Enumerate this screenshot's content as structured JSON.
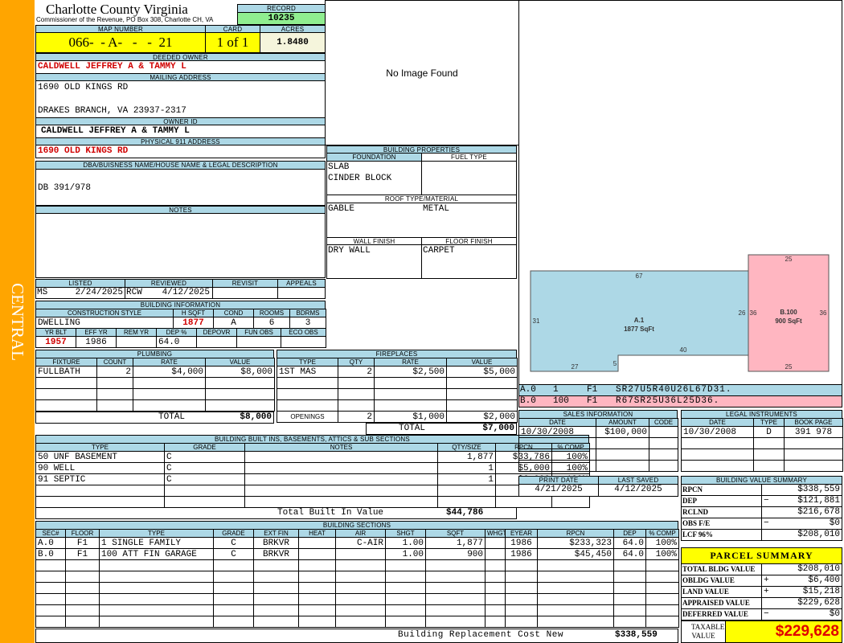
{
  "sidebar": {
    "label": "CENTRAL",
    "color": "#ffa500"
  },
  "header": {
    "county": "Charlotte County Virginia",
    "subtitle": "Commissioner of the Revenue, PO Box 308, Charlotte CH, VA",
    "record_label": "RECORD",
    "record": "10235"
  },
  "map": {
    "map_label": "MAP NUMBER",
    "map_number": "066-  - A-   -   -  21",
    "card_label": "CARD",
    "card": "1 of 1",
    "acres_label": "ACRES",
    "acres": "1.8480"
  },
  "owner": {
    "deeded_label": "DEEDED OWNER",
    "deeded": "CALDWELL JEFFREY A & TAMMY L",
    "mailing_label": "MAILING ADDRESS",
    "mailing_line1": "1690 OLD KINGS RD",
    "mailing_line2": "DRAKES BRANCH, VA 23937-2317",
    "owner_id_label": "OWNER ID",
    "owner_id": "CALDWELL JEFFREY A & TAMMY L",
    "physical_label": "PHYSICAL 911 ADDRESS",
    "physical": "1690 OLD KINGS RD"
  },
  "dba": {
    "label": "DBA/BUISNESS NAME/HOUSE NAME & LEGAL DESCRIPTION",
    "value": "DB 391/978"
  },
  "notes": {
    "label": "NOTES"
  },
  "listing": {
    "listed_label": "LISTED",
    "listed_by": "MS",
    "listed_date": "2/24/2025",
    "reviewed_label": "REVIEWED",
    "reviewed_by": "RCW",
    "reviewed_date": "4/12/2025",
    "revisit_label": "REVISIT",
    "appeals_label": "APPEALS"
  },
  "building_info": {
    "label": "BUILDING INFORMATION",
    "style_label": "CONSTRUCTION STYLE",
    "style": "DWELLING",
    "hsqft_label": "H SQFT",
    "hsqft": "1877",
    "cond_label": "COND",
    "cond": "A",
    "rooms_label": "ROOMS",
    "rooms": "6",
    "bdrms_label": "BDRMS",
    "bdrms": "3",
    "yrblt_label": "YR BLT",
    "yrblt": "1957",
    "effyr_label": "EFF YR",
    "effyr": "1986",
    "remyr_label": "REM YR",
    "dep_label": "DEP %",
    "dep": "64.0",
    "depovr_label": "DEPOVR",
    "funobs_label": "FUN OBS",
    "ecoobs_label": "ECO OBS"
  },
  "image": {
    "text": "No Image Found"
  },
  "building_properties": {
    "label": "BUILDING PROPERTIES",
    "foundation_label": "FOUNDATION",
    "foundation": [
      "SLAB",
      "CINDER BLOCK"
    ],
    "fuel_label": "FUEL TYPE",
    "roof_label": "ROOF TYPE/MATERIAL",
    "roof_type": "GABLE",
    "roof_material": "METAL",
    "wall_label": "WALL FINISH",
    "wall": "DRY WALL",
    "floor_label": "FLOOR FINISH",
    "floor": "CARPET"
  },
  "plumbing": {
    "label": "PLUMBING",
    "headers": [
      "FIXTURE",
      "COUNT",
      "RATE",
      "VALUE"
    ],
    "rows": [
      [
        "FULLBATH",
        "2",
        "$4,000",
        "$8,000"
      ],
      [
        "",
        "",
        "",
        ""
      ],
      [
        "",
        "",
        "",
        ""
      ],
      [
        "",
        "",
        "",
        ""
      ]
    ],
    "total_label": "TOTAL",
    "total": "$8,000"
  },
  "fireplaces": {
    "label": "FIREPLACES",
    "headers": [
      "TYPE",
      "QTY",
      "RATE",
      "VALUE"
    ],
    "rows": [
      [
        "1ST MAS",
        "2",
        "$2,500",
        "$5,000"
      ],
      [
        "",
        "",
        "",
        ""
      ],
      [
        "",
        "",
        "",
        ""
      ],
      [
        "",
        "",
        "",
        ""
      ]
    ],
    "openings_label": "OPENINGS",
    "openings": [
      "2",
      "$1,000",
      "$2,000"
    ],
    "total_label": "TOTAL",
    "total": "$7,000"
  },
  "builtins": {
    "label": "BUILDING BUILT INS, BASEMENTS, ATTICS & SUB SECTIONS",
    "headers": [
      "TYPE",
      "GRADE",
      "NOTES",
      "QTY/SIZE",
      "RPCN",
      "% COMP"
    ],
    "rows": [
      [
        "50 UNF BASEMENT",
        "C",
        "",
        "1,877",
        "$33,786",
        "100%"
      ],
      [
        "90 WELL",
        "C",
        "",
        "1",
        "$5,000",
        "100%"
      ],
      [
        "91 SEPTIC",
        "C",
        "",
        "1",
        "$6,000",
        "100%"
      ],
      [
        "",
        "",
        "",
        "",
        "",
        ""
      ],
      [
        "",
        "",
        "",
        "",
        "",
        ""
      ]
    ],
    "total_label": "Total Built In Value",
    "total": "$44,786"
  },
  "sections": {
    "label": "BUILDING SECTIONS",
    "headers": [
      "SEC#",
      "FLOOR",
      "TYPE",
      "GRADE",
      "EXT FIN",
      "HEAT",
      "AIR",
      "SHGT",
      "SQFT",
      "WHGT",
      "EYEAR",
      "RPCN",
      "DEP",
      "% COMP"
    ],
    "rows": [
      [
        "A.0",
        "F1",
        "1 SINGLE FAMILY",
        "C",
        "BRKVR",
        "",
        "C-AIR",
        "1.00",
        "1,877",
        "",
        "1986",
        "$233,323",
        "64.0",
        "100%"
      ],
      [
        "B.0",
        "F1",
        "100 ATT FIN GARAGE",
        "C",
        "BRKVR",
        "",
        "",
        "1.00",
        "900",
        "",
        "1986",
        "$45,450",
        "64.0",
        "100%"
      ]
    ],
    "footer_label": "Building Replacement Cost New",
    "footer_value": "$338,559"
  },
  "sketch": {
    "a_label": "A.1",
    "a_area": "1877 SqFt",
    "b_label": "B.100",
    "b_area": "900 SqFt",
    "a_color": "#add8e6",
    "b_color": "#ffb6c1",
    "dims": {
      "a_top": "67",
      "a_left": "31",
      "a_bottom": "27",
      "a_step": "5",
      "a_mid": "40",
      "a_right": "26",
      "b_top": "25",
      "b_bottom": "25",
      "b_left": "36",
      "b_right": "36"
    },
    "codes": [
      {
        "sec": "A.0",
        "type": "1",
        "floor": "F1",
        "code": "SR27U5R40U26L67D31."
      },
      {
        "sec": "B.0",
        "type": "100",
        "floor": "F1",
        "code": "R67SR25U36L25D36."
      }
    ]
  },
  "sales": {
    "label": "SALES INFORMATION",
    "headers": [
      "DATE",
      "AMOUNT",
      "CODE"
    ],
    "rows": [
      [
        "10/30/2008",
        "$100,000",
        ""
      ],
      [
        "",
        "",
        ""
      ],
      [
        "",
        "",
        ""
      ],
      [
        "",
        "",
        ""
      ]
    ]
  },
  "legal": {
    "label": "LEGAL INSTRUMENTS",
    "headers": [
      "DATE",
      "TYPE",
      "BOOK PAGE"
    ],
    "rows": [
      [
        "10/30/2008",
        "D",
        "391 978"
      ],
      [
        "",
        "",
        ""
      ],
      [
        "",
        "",
        ""
      ],
      [
        "",
        "",
        ""
      ]
    ]
  },
  "dates": {
    "print_label": "PRINT DATE",
    "print": "4/21/2025",
    "saved_label": "LAST SAVED",
    "saved": "4/12/2025"
  },
  "value_summary": {
    "label": "BUILDING VALUE SUMMARY",
    "rows": [
      [
        "RPCN",
        "",
        "$338,559"
      ],
      [
        "DEP",
        "−",
        "$121,881"
      ],
      [
        "RCLND",
        "",
        "$216,678"
      ],
      [
        "OBS F/E",
        "−",
        "$0"
      ],
      [
        "LCF 96%",
        "",
        "$208,010"
      ]
    ]
  },
  "parcel": {
    "label": "PARCEL SUMMARY",
    "rows": [
      [
        "TOTAL BLDG VALUE",
        "",
        "$208,010"
      ],
      [
        "OBLDG VALUE",
        "+",
        "$6,400"
      ],
      [
        "LAND VALUE",
        "+",
        "$15,218"
      ],
      [
        "APPRAISED VALUE",
        "",
        "$229,628"
      ],
      [
        "DEFERRED VALUE",
        "−",
        "$0"
      ]
    ],
    "taxable_label": "TAXABLE VALUE",
    "taxable": "$229,628"
  }
}
